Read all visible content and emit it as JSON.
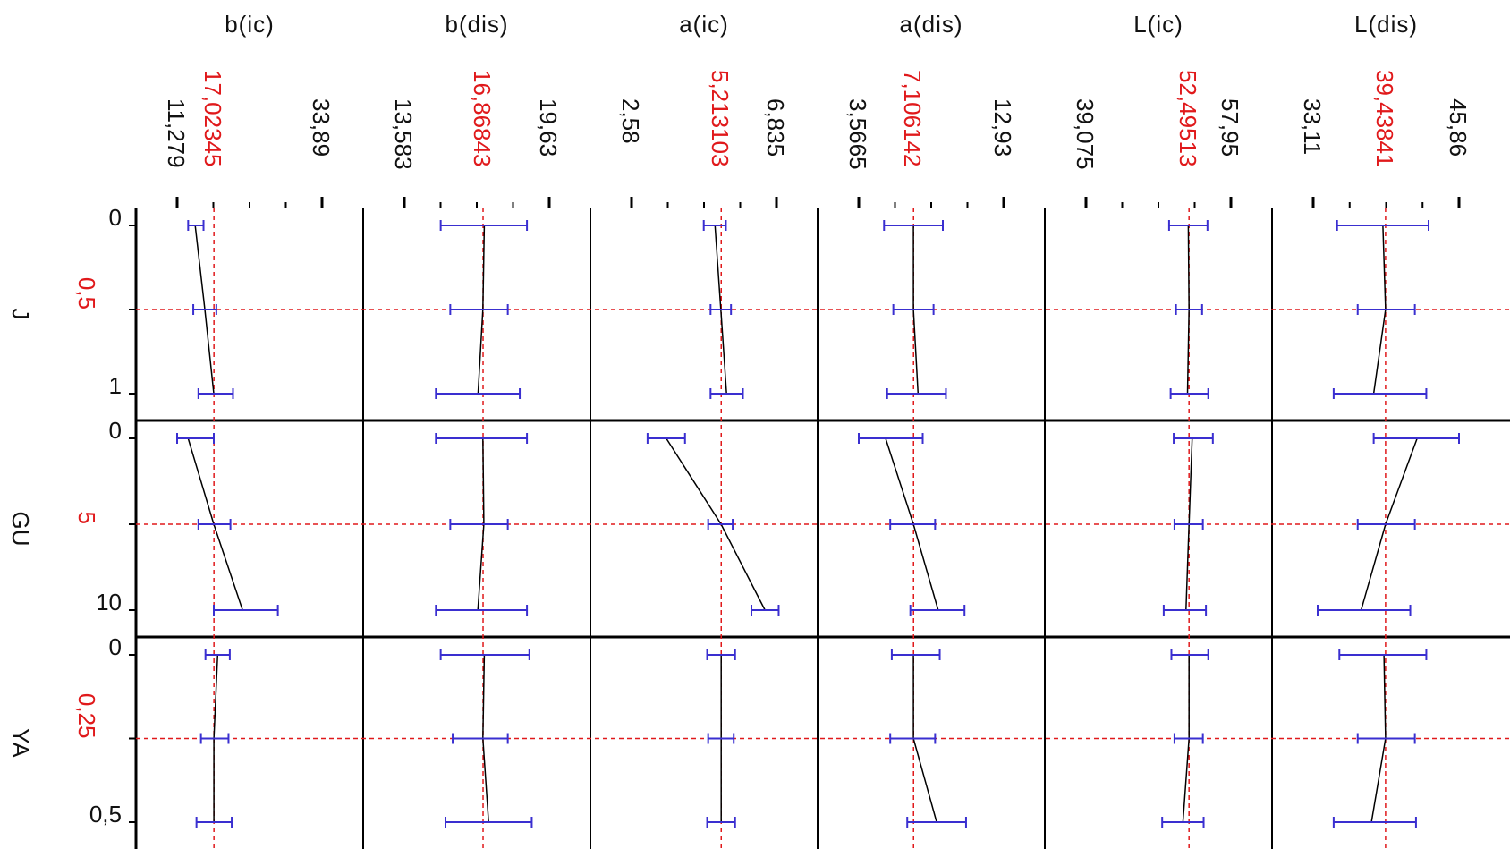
{
  "colors": {
    "axis": "#000000",
    "reference": "#e0191b",
    "trace": "#000000",
    "errorbar": "#3a2fd0",
    "text": "#111111"
  },
  "chart_data": {
    "type": "line",
    "layout": "prediction-profiler",
    "columns": [
      {
        "name": "b(ic)",
        "ticks": [
          "11,279",
          "17,02345",
          "33,89"
        ],
        "min": 11.279,
        "current": 17.02345,
        "max": 33.89
      },
      {
        "name": "b(dis)",
        "ticks": [
          "13,583",
          "16,86843",
          "19,63"
        ],
        "min": 13.583,
        "current": 16.86843,
        "max": 19.63
      },
      {
        "name": "a(ic)",
        "ticks": [
          "2,58",
          "5,213103",
          "6,835"
        ],
        "min": 2.58,
        "current": 5.213103,
        "max": 6.835
      },
      {
        "name": "a(dis)",
        "ticks": [
          "3,5665",
          "7,106142",
          "12,93"
        ],
        "min": 3.5665,
        "current": 7.106142,
        "max": 12.93
      },
      {
        "name": "L(ic)",
        "ticks": [
          "39,075",
          "52,49513",
          "57,95"
        ],
        "min": 39.075,
        "current": 52.49513,
        "max": 57.95
      },
      {
        "name": "L(dis)",
        "ticks": [
          "33,11",
          "39,43841",
          "45,86"
        ],
        "min": 33.11,
        "current": 39.43841,
        "max": 45.86
      }
    ],
    "rows": [
      {
        "name": "J",
        "ticks": [
          "0",
          "0,5",
          "1"
        ],
        "min": 0,
        "current": 0.5,
        "max": 1,
        "traces": [
          {
            "x": [
              14.1,
              15.6,
              17.0
            ],
            "lo": [
              13.0,
              13.8,
              14.6
            ],
            "hi": [
              15.4,
              17.4,
              20.0
            ]
          },
          {
            "x": [
              16.92,
              16.86,
              16.66
            ],
            "lo": [
              15.1,
              15.5,
              14.9
            ],
            "hi": [
              18.7,
              17.9,
              18.4
            ]
          },
          {
            "x": [
              5.03,
              5.2,
              5.37
            ],
            "lo": [
              4.7,
              4.9,
              4.9
            ],
            "hi": [
              5.35,
              5.5,
              5.85
            ]
          },
          {
            "x": [
              7.1,
              7.1,
              7.4
            ],
            "lo": [
              5.2,
              5.8,
              5.4
            ],
            "hi": [
              9.0,
              8.4,
              9.2
            ]
          },
          {
            "x": [
              52.4,
              52.5,
              52.3
            ],
            "lo": [
              49.9,
              50.8,
              50.1
            ],
            "hi": [
              54.9,
              54.2,
              55.0
            ]
          },
          {
            "x": [
              39.2,
              39.44,
              38.4
            ],
            "lo": [
              35.2,
              37.0,
              34.9
            ],
            "hi": [
              43.2,
              42.0,
              43.0
            ]
          }
        ]
      },
      {
        "name": "GU",
        "ticks": [
          "0",
          "5",
          "10"
        ],
        "min": 0,
        "current": 5,
        "max": 10,
        "traces": [
          {
            "x": [
              13.0,
              17.0,
              21.5
            ],
            "lo": [
              11.279,
              14.6,
              17.0
            ],
            "hi": [
              17.0,
              19.6,
              27.0
            ]
          },
          {
            "x": [
              16.86,
              16.9,
              16.65
            ],
            "lo": [
              14.9,
              15.5,
              14.9
            ],
            "hi": [
              18.7,
              17.9,
              18.7
            ]
          },
          {
            "x": [
              3.6,
              5.21,
              6.5
            ],
            "lo": [
              3.05,
              4.83,
              6.1
            ],
            "hi": [
              4.15,
              5.55,
              6.9
            ]
          },
          {
            "x": [
              5.3,
              7.1,
              8.7
            ],
            "lo": [
              3.5665,
              5.6,
              6.9
            ],
            "hi": [
              7.7,
              8.5,
              10.4
            ]
          },
          {
            "x": [
              52.9,
              52.5,
              52.1
            ],
            "lo": [
              50.5,
              50.6,
              49.2
            ],
            "hi": [
              55.6,
              54.3,
              54.7
            ]
          },
          {
            "x": [
              42.2,
              39.44,
              37.3
            ],
            "lo": [
              38.4,
              37.0,
              33.5
            ],
            "hi": [
              45.86,
              42.0,
              41.6
            ]
          }
        ]
      },
      {
        "name": "YA",
        "ticks": [
          "0",
          "0,25",
          "0,5"
        ],
        "min": 0,
        "current": 0.25,
        "max": 0.5,
        "traces": [
          {
            "x": [
              17.6,
              17.02,
              17.02
            ],
            "lo": [
              15.7,
              15.0,
              14.3
            ],
            "hi": [
              19.5,
              19.3,
              19.8
            ]
          },
          {
            "x": [
              16.92,
              16.86,
              17.1
            ],
            "lo": [
              15.1,
              15.6,
              15.3
            ],
            "hi": [
              18.8,
              17.9,
              18.9
            ]
          },
          {
            "x": [
              5.213,
              5.213,
              5.213
            ],
            "lo": [
              4.8,
              4.83,
              4.8
            ],
            "hi": [
              5.62,
              5.58,
              5.62
            ]
          },
          {
            "x": [
              7.1,
              7.1,
              8.6
            ],
            "lo": [
              5.7,
              5.6,
              6.7
            ],
            "hi": [
              8.8,
              8.5,
              10.5
            ]
          },
          {
            "x": [
              52.5,
              52.5,
              51.7
            ],
            "lo": [
              50.2,
              50.6,
              49.0
            ],
            "hi": [
              55.0,
              54.3,
              54.4
            ]
          },
          {
            "x": [
              39.3,
              39.44,
              38.2
            ],
            "lo": [
              35.4,
              37.0,
              34.9
            ],
            "hi": [
              43.0,
              42.0,
              42.1
            ]
          }
        ]
      }
    ]
  }
}
